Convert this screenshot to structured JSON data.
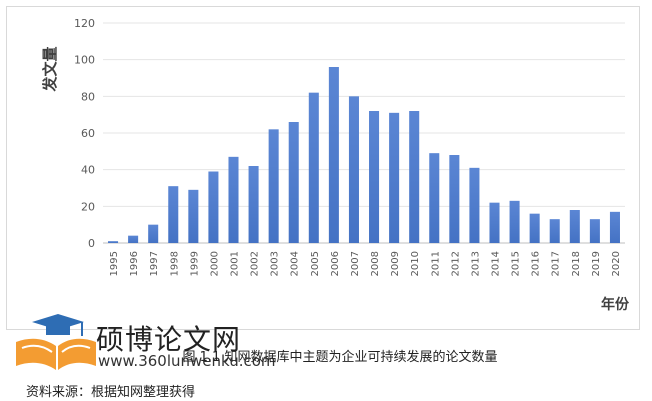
{
  "chart_data": {
    "type": "bar",
    "ylabel": "发文量",
    "xlabel": "年份",
    "ylim": [
      0,
      120
    ],
    "yticks": [
      0,
      20,
      40,
      60,
      80,
      100,
      120
    ],
    "grid": true,
    "bar_color": "#4472c4",
    "categories": [
      "1995",
      "1996",
      "1997",
      "1998",
      "1999",
      "2000",
      "2001",
      "2002",
      "2003",
      "2004",
      "2005",
      "2006",
      "2007",
      "2008",
      "2009",
      "2010",
      "2011",
      "2012",
      "2013",
      "2014",
      "2015",
      "2016",
      "2017",
      "2018",
      "2019",
      "2020"
    ],
    "values": [
      1,
      4,
      10,
      31,
      29,
      39,
      47,
      42,
      62,
      66,
      82,
      96,
      80,
      72,
      71,
      72,
      49,
      48,
      41,
      22,
      23,
      16,
      13,
      18,
      13,
      17
    ]
  },
  "caption": "图 1.1 知网数据库中主题为企业可持续发展的论文数量",
  "source": "资料来源：根据知网整理获得",
  "watermark": {
    "title": "硕博论文网",
    "url": "www.360lunwenku.com"
  }
}
